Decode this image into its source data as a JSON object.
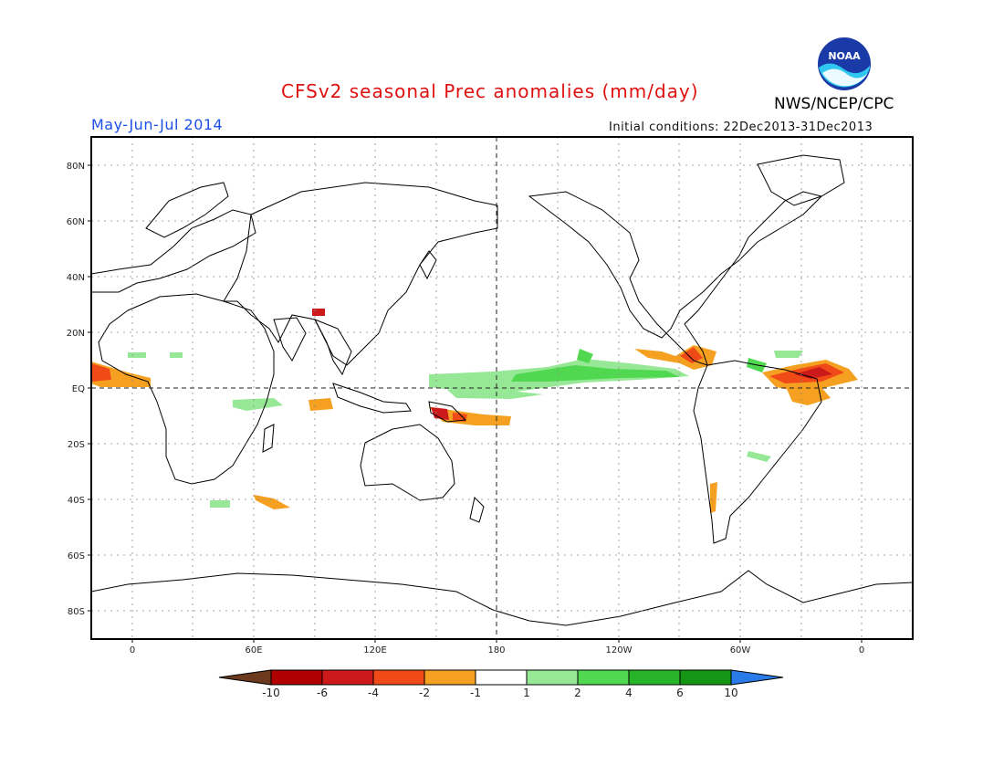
{
  "header": {
    "title": "CFSv2 seasonal Prec anomalies (mm/day)",
    "season": "May-Jun-Jul 2014",
    "initial_conditions": "Initial conditions: 22Dec2013-31Dec2013",
    "agency": "NWS/NCEP/CPC",
    "logo_text": "NOAA"
  },
  "axes": {
    "lat_labels": [
      "80N",
      "60N",
      "40N",
      "20N",
      "EQ",
      "20S",
      "40S",
      "60S",
      "80S"
    ],
    "lon_labels": [
      "0",
      "60E",
      "120E",
      "180",
      "120W",
      "60W",
      "0"
    ]
  },
  "colorbar": {
    "labels": [
      "-10",
      "-6",
      "-4",
      "-2",
      "-1",
      "1",
      "2",
      "4",
      "6",
      "10"
    ],
    "colors": [
      "#6b3a1e",
      "#b00000",
      "#cc1a1a",
      "#f04a18",
      "#f5a020",
      "#ffffff",
      "#96e896",
      "#50d850",
      "#28b428",
      "#149614",
      "#2a7ae8"
    ]
  },
  "colors": {
    "wet_light": "#96e896",
    "wet_medium": "#50d850",
    "dry_light": "#f5a020",
    "dry_medium": "#f04a18",
    "dry_strong": "#cc1a1a"
  }
}
